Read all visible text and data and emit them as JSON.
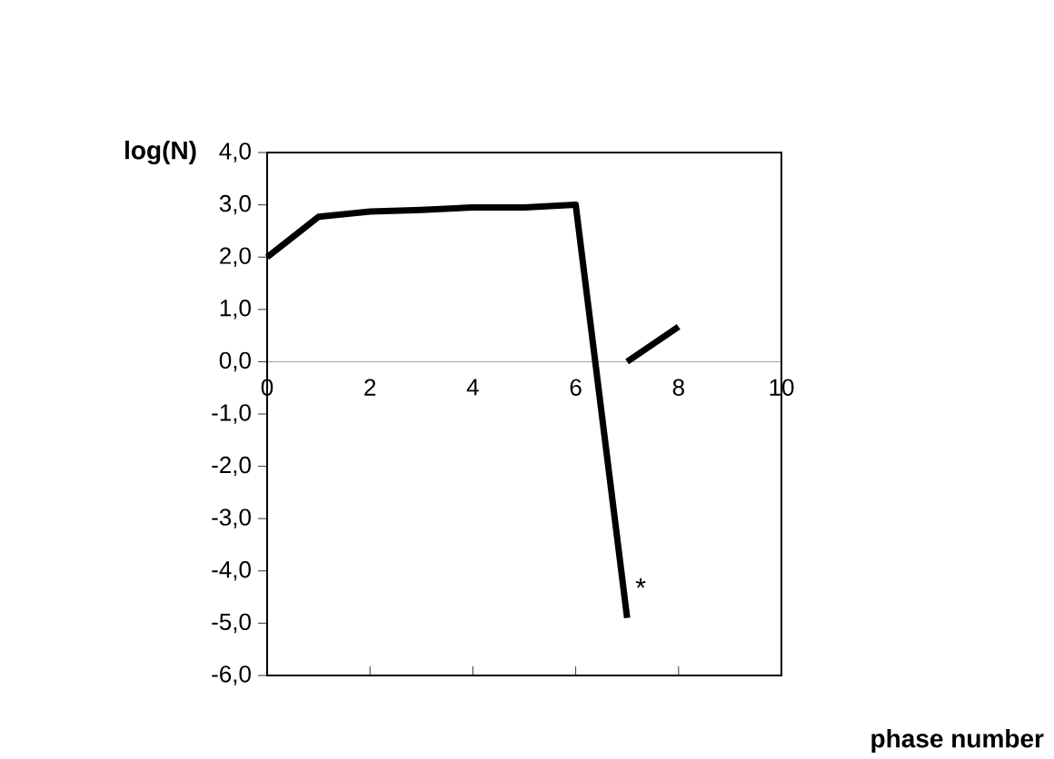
{
  "chart_data": {
    "type": "line",
    "xlabel": "phase number",
    "ylabel": "log(N)",
    "series": [
      {
        "color": "#000000",
        "x": [
          0,
          1,
          2,
          3,
          4,
          5,
          6,
          7
        ],
        "values": [
          2.0,
          2.77,
          2.87,
          2.9,
          2.95,
          2.95,
          3.0,
          -4.9
        ]
      },
      {
        "color": "#000000",
        "x": [
          7,
          8
        ],
        "values": [
          0.0,
          0.67
        ]
      }
    ],
    "xlim": [
      0,
      10
    ],
    "xticks": [
      0,
      2,
      4,
      6,
      8,
      10
    ],
    "ylim": [
      -6,
      4
    ],
    "yticks": [
      {
        "value": -6,
        "label": "-6,0"
      },
      {
        "value": -5,
        "label": "-5,0"
      },
      {
        "value": -4,
        "label": "-4,0"
      },
      {
        "value": -3,
        "label": "-3,0"
      },
      {
        "value": -2,
        "label": "-2,0"
      },
      {
        "value": -1,
        "label": "-1,0"
      },
      {
        "value": 0,
        "label": "0,0"
      },
      {
        "value": 1,
        "label": "1,0"
      },
      {
        "value": 2,
        "label": "2,0"
      },
      {
        "value": 3,
        "label": "3,0"
      },
      {
        "value": 4,
        "label": "4,0"
      }
    ],
    "annotations": [
      {
        "text": "*",
        "x": 7,
        "y": -4.9
      }
    ],
    "grid": false,
    "marker": "none",
    "line_style": "solid"
  }
}
